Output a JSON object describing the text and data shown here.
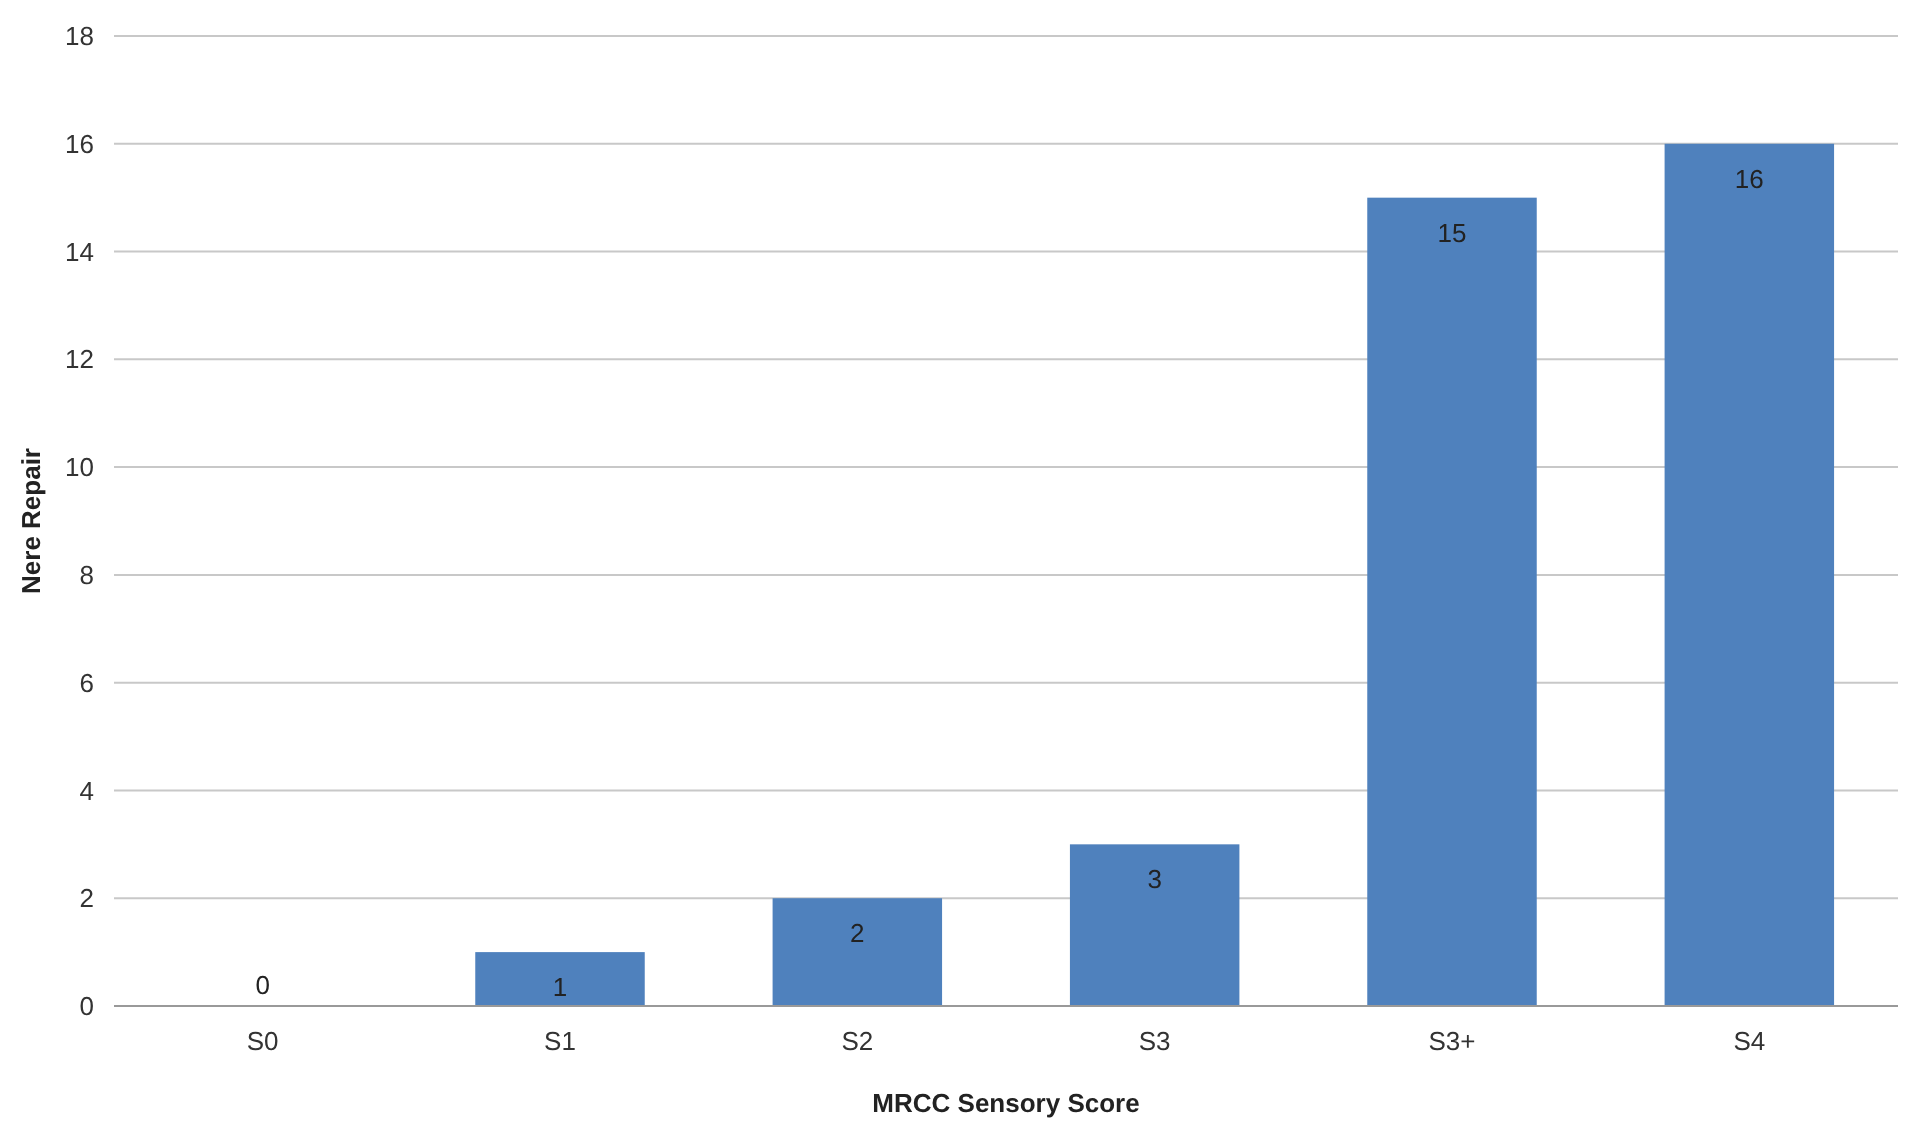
{
  "chart_data": {
    "type": "bar",
    "xlabel": "MRCC Sensory Score",
    "ylabel": "Nere Repair",
    "categories": [
      "S0",
      "S1",
      "S2",
      "S3",
      "S3+",
      "S4"
    ],
    "values": [
      0,
      1,
      2,
      3,
      15,
      16
    ],
    "color": "#4f81bd",
    "ylim": [
      0,
      18
    ],
    "yticks": [
      0,
      2,
      4,
      6,
      8,
      10,
      12,
      14,
      16,
      18
    ],
    "grid": "y",
    "data_labels": true
  }
}
